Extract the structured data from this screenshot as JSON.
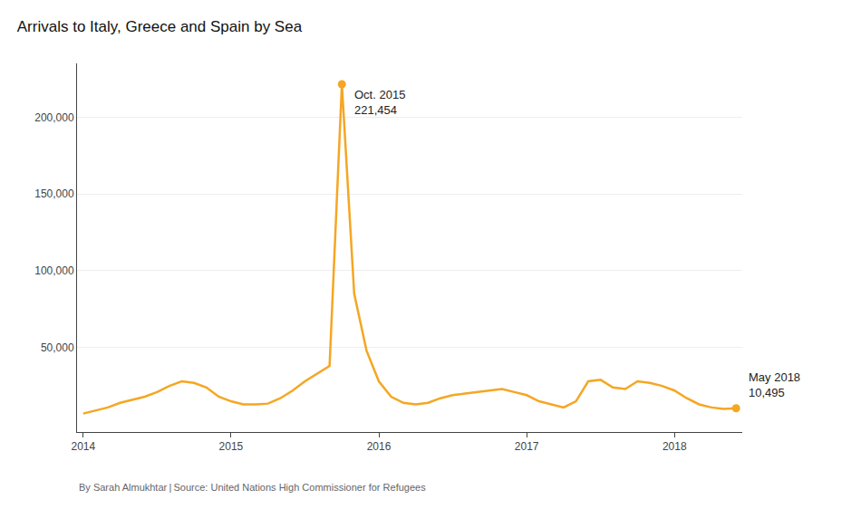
{
  "chart_data": {
    "type": "line",
    "title": "Arrivals to Italy, Greece and Spain by Sea",
    "source": "By Sarah Almukhtar | Source: United Nations High Commissioner for Refugees",
    "color": "#F5A623",
    "categories": [
      "2014",
      null,
      null,
      null,
      null,
      null,
      null,
      null,
      null,
      null,
      null,
      null,
      "2015",
      null,
      null,
      null,
      null,
      null,
      null,
      null,
      null,
      null,
      null,
      null,
      "2016",
      null,
      null,
      null,
      null,
      null,
      null,
      null,
      null,
      null,
      null,
      null,
      "2017",
      null,
      null,
      null,
      null,
      null,
      null,
      null,
      null,
      null,
      null,
      null,
      "2018",
      null,
      null,
      null,
      null,
      null
    ],
    "values": [
      7000,
      9000,
      11000,
      14000,
      16000,
      18000,
      21000,
      25000,
      28000,
      27000,
      24000,
      18000,
      15000,
      13000,
      13000,
      13500,
      17000,
      22000,
      28000,
      33000,
      38000,
      221454,
      85000,
      48000,
      28000,
      18000,
      14000,
      13000,
      14000,
      17000,
      19000,
      20000,
      21000,
      22000,
      23000,
      21000,
      19000,
      15000,
      13000,
      11000,
      15000,
      28000,
      29000,
      24000,
      23000,
      28000,
      27000,
      25000,
      22000,
      17000,
      13000,
      11000,
      10000,
      10495
    ],
    "ylim": [
      -5000,
      235000
    ],
    "yticks": [
      {
        "value": 50000,
        "label": "50,000"
      },
      {
        "value": 100000,
        "label": "100,000"
      },
      {
        "value": 150000,
        "label": "150,000"
      },
      {
        "value": 200000,
        "label": "200,000"
      }
    ],
    "grid": true,
    "annotations": [
      {
        "text": "Oct. 2015\n221,454",
        "index": 21,
        "value": 221454
      },
      {
        "text": "May 2018\n10,495",
        "index": 53,
        "value": 10495
      }
    ]
  }
}
